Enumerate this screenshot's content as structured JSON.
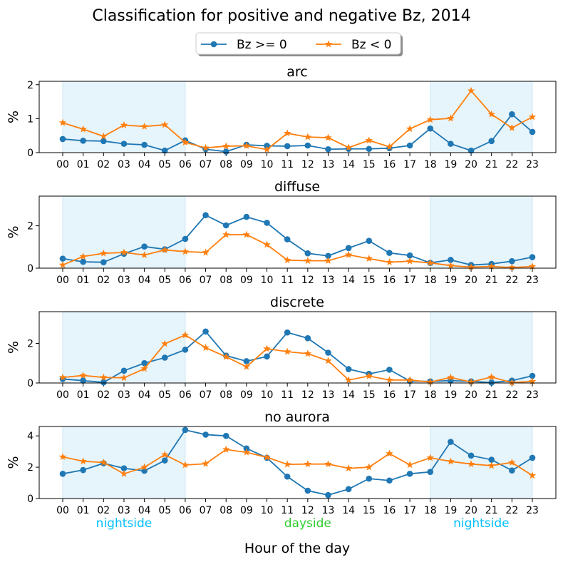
{
  "title": "Classification for positive and negative Bz, 2014",
  "legend": {
    "placement": "top-center",
    "items": [
      {
        "label": "Bz >= 0",
        "color": "#1f77b4",
        "marker": "circle"
      },
      {
        "label": "Bz < 0",
        "color": "#ff7f0e",
        "marker": "star"
      }
    ]
  },
  "xlabel": "Hour of the day",
  "region_labels": [
    {
      "text": "nightside",
      "color": "#00bfff",
      "hour": 3
    },
    {
      "text": "dayside",
      "color": "#32cd32",
      "hour": 12
    },
    {
      "text": "nightside",
      "color": "#00bfff",
      "hour": 20.5
    }
  ],
  "shaded_ranges": [
    [
      0,
      6
    ],
    [
      18,
      23
    ]
  ],
  "shade_color": "#e6f4fb",
  "chart_data": [
    {
      "type": "line",
      "title": "arc",
      "ylabel": "%",
      "ylim": [
        0,
        2.1
      ],
      "yticks": [
        0,
        1,
        2
      ],
      "x": [
        "00",
        "01",
        "02",
        "03",
        "04",
        "05",
        "06",
        "07",
        "08",
        "09",
        "10",
        "11",
        "12",
        "13",
        "14",
        "15",
        "16",
        "17",
        "18",
        "19",
        "20",
        "21",
        "22",
        "23"
      ],
      "series": [
        {
          "name": "Bz >= 0",
          "values": [
            0.4,
            0.35,
            0.34,
            0.26,
            0.23,
            0.06,
            0.36,
            0.1,
            0.03,
            0.23,
            0.2,
            0.19,
            0.21,
            0.1,
            0.11,
            0.11,
            0.13,
            0.21,
            0.71,
            0.26,
            0.06,
            0.34,
            1.13,
            0.61
          ]
        },
        {
          "name": "Bz < 0",
          "values": [
            0.88,
            0.69,
            0.48,
            0.81,
            0.77,
            0.82,
            0.3,
            0.14,
            0.19,
            0.2,
            0.09,
            0.57,
            0.46,
            0.44,
            0.15,
            0.36,
            0.17,
            0.7,
            0.97,
            1.01,
            1.82,
            1.13,
            0.73,
            1.05
          ]
        }
      ]
    },
    {
      "type": "line",
      "title": "diffuse",
      "ylabel": "%",
      "ylim": [
        0,
        3.4
      ],
      "yticks": [
        0,
        2
      ],
      "x": [
        "00",
        "01",
        "02",
        "03",
        "04",
        "05",
        "06",
        "07",
        "08",
        "09",
        "10",
        "11",
        "12",
        "13",
        "14",
        "15",
        "16",
        "17",
        "18",
        "19",
        "20",
        "21",
        "22",
        "23"
      ],
      "series": [
        {
          "name": "Bz >= 0",
          "values": [
            0.45,
            0.3,
            0.28,
            0.68,
            1.02,
            0.89,
            1.38,
            2.5,
            2.02,
            2.42,
            2.14,
            1.36,
            0.7,
            0.58,
            0.95,
            1.29,
            0.72,
            0.6,
            0.25,
            0.39,
            0.15,
            0.2,
            0.33,
            0.52
          ]
        },
        {
          "name": "Bz < 0",
          "values": [
            0.15,
            0.55,
            0.7,
            0.74,
            0.62,
            0.86,
            0.78,
            0.74,
            1.58,
            1.58,
            1.11,
            0.38,
            0.35,
            0.35,
            0.63,
            0.45,
            0.28,
            0.33,
            0.25,
            0.12,
            0.05,
            0.08,
            0.03,
            0.08
          ]
        }
      ]
    },
    {
      "type": "line",
      "title": "discrete",
      "ylabel": "%",
      "ylim": [
        0,
        3.6
      ],
      "yticks": [
        0,
        2
      ],
      "x": [
        "00",
        "01",
        "02",
        "03",
        "04",
        "05",
        "06",
        "07",
        "08",
        "09",
        "10",
        "11",
        "12",
        "13",
        "14",
        "15",
        "16",
        "17",
        "18",
        "19",
        "20",
        "21",
        "22",
        "23"
      ],
      "series": [
        {
          "name": "Bz >= 0",
          "values": [
            0.2,
            0.12,
            0.03,
            0.62,
            1.0,
            1.28,
            1.68,
            2.6,
            1.38,
            1.1,
            1.34,
            2.55,
            2.26,
            1.53,
            0.7,
            0.46,
            0.67,
            0.1,
            0.08,
            0.12,
            0.08,
            0.02,
            0.12,
            0.36
          ]
        },
        {
          "name": "Bz < 0",
          "values": [
            0.28,
            0.38,
            0.28,
            0.26,
            0.72,
            1.98,
            2.42,
            1.78,
            1.32,
            0.82,
            1.73,
            1.58,
            1.48,
            1.12,
            0.15,
            0.35,
            0.15,
            0.15,
            0.05,
            0.28,
            0.05,
            0.3,
            0.02,
            0.08
          ]
        }
      ]
    },
    {
      "type": "line",
      "title": "no aurora",
      "ylabel": "%",
      "ylim": [
        0,
        4.6
      ],
      "yticks": [
        0,
        2,
        4
      ],
      "x": [
        "00",
        "01",
        "02",
        "03",
        "04",
        "05",
        "06",
        "07",
        "08",
        "09",
        "10",
        "11",
        "12",
        "13",
        "14",
        "15",
        "16",
        "17",
        "18",
        "19",
        "20",
        "21",
        "22",
        "23"
      ],
      "series": [
        {
          "name": "Bz >= 0",
          "values": [
            1.58,
            1.82,
            2.25,
            1.93,
            1.77,
            2.43,
            4.38,
            4.08,
            4.0,
            3.2,
            2.6,
            1.4,
            0.5,
            0.22,
            0.6,
            1.27,
            1.15,
            1.58,
            1.7,
            3.62,
            2.74,
            2.48,
            1.79,
            2.6
          ]
        },
        {
          "name": "Bz < 0",
          "values": [
            2.66,
            2.38,
            2.3,
            1.58,
            2.0,
            2.8,
            2.14,
            2.22,
            3.13,
            2.95,
            2.63,
            2.18,
            2.2,
            2.2,
            1.93,
            2.0,
            2.87,
            2.15,
            2.6,
            2.37,
            2.2,
            2.1,
            2.3,
            1.47
          ]
        }
      ]
    }
  ]
}
